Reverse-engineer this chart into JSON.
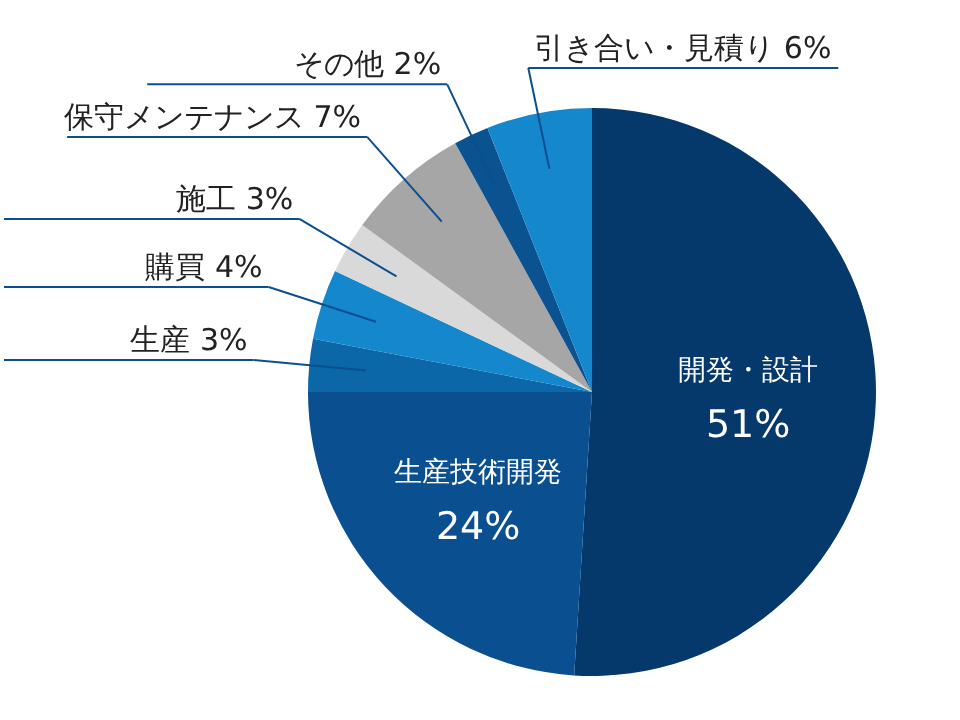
{
  "chart_data": {
    "type": "pie",
    "categories": [
      "開発・設計",
      "生産技術開発",
      "生産",
      "購買",
      "施工",
      "保守メンテナンス",
      "その他",
      "引き合い・見積り"
    ],
    "values": [
      51,
      24,
      3,
      4,
      3,
      7,
      2,
      6
    ],
    "value_labels": [
      "51%",
      "24%",
      "3%",
      "4%",
      "3%",
      "7%",
      "2%",
      "6%"
    ],
    "colors": [
      "#05386b",
      "#0a4f8f",
      "#0b67a8",
      "#1587cc",
      "#d9d9d9",
      "#a6a6a6",
      "#0a5290",
      "#1587cc"
    ]
  }
}
